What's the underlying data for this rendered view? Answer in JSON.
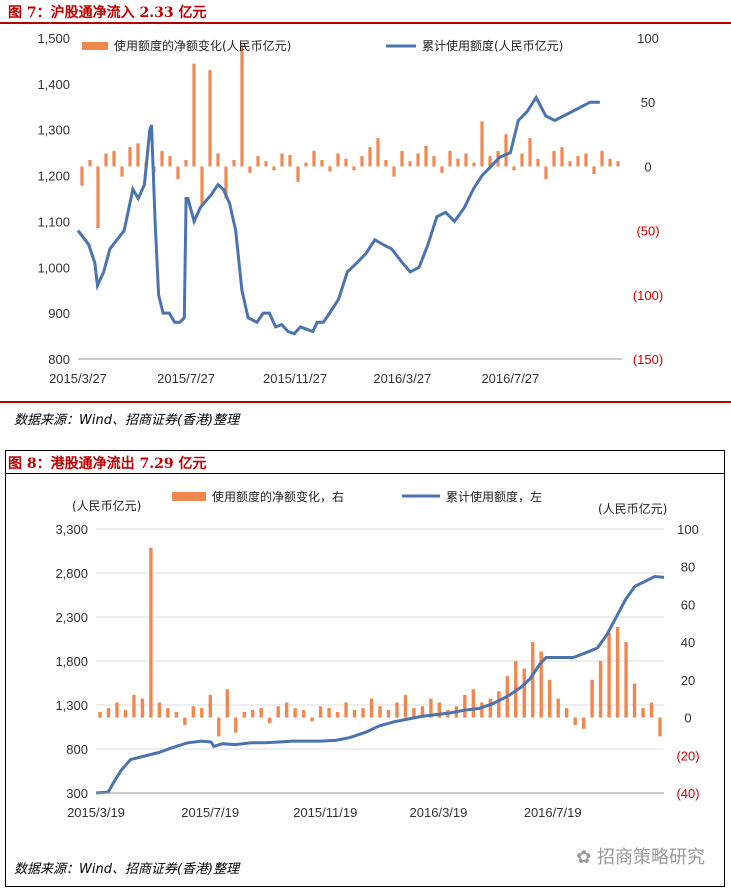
{
  "figure1": {
    "title": "图 7：沪股通净流入 2.33 亿元",
    "source": "数据来源：Wind、招商证券(香港)整理"
  },
  "figure2": {
    "title": "图 8：港股通净流出 7.29 亿元",
    "source": "数据来源：Wind、招商证券(香港)整理"
  },
  "watermark": "招商策略研究",
  "colors": {
    "bar": "#f0874e",
    "line": "#4a73b0",
    "title": "#c00000",
    "rule": "#b00000",
    "negative_tick": "#d00000"
  },
  "chart_data": [
    {
      "type": "bar+line",
      "title": "",
      "x_tick_labels": [
        "2015/3/27",
        "2015/7/27",
        "2015/11/27",
        "2016/3/27",
        "2016/7/27"
      ],
      "x_range": [
        "2015/3/27",
        "2016/11/30"
      ],
      "left_axis": {
        "ticks": [
          "800",
          "900",
          "1,000",
          "1,100",
          "1,200",
          "1,300",
          "1,400",
          "1,500"
        ],
        "range": [
          800,
          1500
        ]
      },
      "right_axis": {
        "ticks": [
          "(150)",
          "(100)",
          "(50)",
          "0",
          "50",
          "100"
        ],
        "range": [
          -150,
          100
        ]
      },
      "legend_position": "top",
      "series": [
        {
          "name": "使用额度的净额变化(人民币亿元)",
          "type": "bar",
          "axis": "right",
          "sample_values": [
            -15,
            5,
            -48,
            10,
            12,
            -8,
            15,
            18,
            3,
            -5,
            12,
            8,
            -10,
            5,
            80,
            -30,
            75,
            10,
            -25,
            5,
            95,
            -5,
            8,
            4,
            -3,
            10,
            9,
            -12,
            3,
            12,
            5,
            -4,
            10,
            6,
            -3,
            8,
            15,
            22,
            5,
            -8,
            12,
            4,
            10,
            16,
            8,
            -5,
            12,
            6,
            10,
            3,
            35,
            8,
            12,
            25,
            -3,
            10,
            22,
            6,
            -10,
            12,
            15,
            4,
            8,
            10,
            -6,
            12,
            6,
            4
          ]
        },
        {
          "name": "累计使用额度(人民币亿元)",
          "type": "line",
          "axis": "left",
          "points": [
            [
              "2015/3/27",
              1080
            ],
            [
              "2015/4/8",
              1050
            ],
            [
              "2015/4/15",
              1010
            ],
            [
              "2015/4/18",
              960
            ],
            [
              "2015/4/25",
              990
            ],
            [
              "2015/5/2",
              1040
            ],
            [
              "2015/5/10",
              1060
            ],
            [
              "2015/5/18",
              1080
            ],
            [
              "2015/5/28",
              1170
            ],
            [
              "2015/6/3",
              1150
            ],
            [
              "2015/6/10",
              1180
            ],
            [
              "2015/6/16",
              1300
            ],
            [
              "2015/6/18",
              1310
            ],
            [
              "2015/6/22",
              1100
            ],
            [
              "2015/6/26",
              940
            ],
            [
              "2015/7/1",
              900
            ],
            [
              "2015/7/8",
              900
            ],
            [
              "2015/7/14",
              880
            ],
            [
              "2015/7/20",
              880
            ],
            [
              "2015/7/25",
              890
            ],
            [
              "2015/7/27",
              1150
            ],
            [
              "2015/7/29",
              1150
            ],
            [
              "2015/8/5",
              1100
            ],
            [
              "2015/8/12",
              1130
            ],
            [
              "2015/8/25",
              1160
            ],
            [
              "2015/9/1",
              1180
            ],
            [
              "2015/9/7",
              1170
            ],
            [
              "2015/9/14",
              1140
            ],
            [
              "2015/9/21",
              1080
            ],
            [
              "2015/9/28",
              950
            ],
            [
              "2015/10/5",
              890
            ],
            [
              "2015/10/15",
              880
            ],
            [
              "2015/10/22",
              900
            ],
            [
              "2015/10/29",
              900
            ],
            [
              "2015/11/5",
              870
            ],
            [
              "2015/11/12",
              875
            ],
            [
              "2015/11/19",
              860
            ],
            [
              "2015/11/26",
              855
            ],
            [
              "2015/12/3",
              870
            ],
            [
              "2015/12/10",
              865
            ],
            [
              "2015/12/17",
              860
            ],
            [
              "2015/12/22",
              880
            ],
            [
              "2015/12/29",
              880
            ],
            [
              "2016/1/5",
              900
            ],
            [
              "2016/1/15",
              930
            ],
            [
              "2016/1/25",
              990
            ],
            [
              "2016/2/5",
              1010
            ],
            [
              "2016/2/15",
              1030
            ],
            [
              "2016/2/25",
              1060
            ],
            [
              "2016/3/5",
              1050
            ],
            [
              "2016/3/15",
              1040
            ],
            [
              "2016/3/27",
              1010
            ],
            [
              "2016/4/5",
              990
            ],
            [
              "2016/4/15",
              1000
            ],
            [
              "2016/4/25",
              1050
            ],
            [
              "2016/5/5",
              1110
            ],
            [
              "2016/5/15",
              1120
            ],
            [
              "2016/5/25",
              1100
            ],
            [
              "2016/6/5",
              1130
            ],
            [
              "2016/6/15",
              1170
            ],
            [
              "2016/6/25",
              1200
            ],
            [
              "2016/7/5",
              1220
            ],
            [
              "2016/7/15",
              1240
            ],
            [
              "2016/7/27",
              1250
            ],
            [
              "2016/8/5",
              1320
            ],
            [
              "2016/8/15",
              1340
            ],
            [
              "2016/8/25",
              1370
            ],
            [
              "2016/9/5",
              1330
            ],
            [
              "2016/9/15",
              1320
            ],
            [
              "2016/9/25",
              1330
            ],
            [
              "2016/10/5",
              1340
            ],
            [
              "2016/10/15",
              1350
            ],
            [
              "2016/10/25",
              1360
            ],
            [
              "2016/11/5",
              1360
            ]
          ]
        }
      ]
    },
    {
      "type": "bar+line",
      "title": "",
      "x_tick_labels": [
        "2015/3/19",
        "2015/7/19",
        "2015/11/19",
        "2016/3/19",
        "2016/7/19"
      ],
      "x_range": [
        "2015/3/19",
        "2016/11/15"
      ],
      "left_axis": {
        "unit": "(人民币亿元)",
        "ticks": [
          "300",
          "800",
          "1,300",
          "1,800",
          "2,300",
          "2,800",
          "3,300"
        ],
        "range": [
          300,
          3300
        ]
      },
      "right_axis": {
        "unit": "(人民币亿元)",
        "ticks": [
          "(40)",
          "(20)",
          "0",
          "20",
          "40",
          "60",
          "80",
          "100"
        ],
        "range": [
          -40,
          100
        ]
      },
      "legend_position": "top",
      "series": [
        {
          "name": "使用额度的净额变化，右",
          "type": "bar",
          "axis": "right",
          "sample_values": [
            3,
            5,
            8,
            4,
            12,
            10,
            90,
            8,
            5,
            3,
            -4,
            6,
            5,
            12,
            -10,
            15,
            -8,
            3,
            4,
            5,
            -3,
            6,
            8,
            5,
            4,
            -2,
            6,
            5,
            3,
            8,
            4,
            5,
            10,
            6,
            4,
            8,
            12,
            5,
            6,
            10,
            8,
            4,
            6,
            12,
            15,
            8,
            10,
            14,
            22,
            30,
            26,
            40,
            35,
            20,
            10,
            5,
            -4,
            -6,
            20,
            30,
            45,
            48,
            40,
            18,
            5,
            8,
            -10
          ]
        },
        {
          "name": "累计使用额度，左",
          "type": "line",
          "axis": "left",
          "points": [
            [
              "2015/3/19",
              300
            ],
            [
              "2015/4/1",
              310
            ],
            [
              "2015/4/8",
              440
            ],
            [
              "2015/4/15",
              560
            ],
            [
              "2015/4/25",
              680
            ],
            [
              "2015/5/10",
              720
            ],
            [
              "2015/5/25",
              760
            ],
            [
              "2015/6/10",
              820
            ],
            [
              "2015/6/25",
              870
            ],
            [
              "2015/7/10",
              890
            ],
            [
              "2015/7/20",
              880
            ],
            [
              "2015/7/23",
              830
            ],
            [
              "2015/8/1",
              860
            ],
            [
              "2015/8/15",
              850
            ],
            [
              "2015/9/1",
              870
            ],
            [
              "2015/9/15",
              870
            ],
            [
              "2015/10/1",
              880
            ],
            [
              "2015/10/15",
              890
            ],
            [
              "2015/11/1",
              890
            ],
            [
              "2015/11/15",
              890
            ],
            [
              "2015/12/1",
              900
            ],
            [
              "2015/12/15",
              930
            ],
            [
              "2016/1/1",
              990
            ],
            [
              "2016/1/15",
              1060
            ],
            [
              "2016/2/1",
              1110
            ],
            [
              "2016/2/15",
              1140
            ],
            [
              "2016/3/1",
              1170
            ],
            [
              "2016/3/15",
              1190
            ],
            [
              "2016/4/1",
              1210
            ],
            [
              "2016/4/15",
              1240
            ],
            [
              "2016/5/1",
              1260
            ],
            [
              "2016/5/15",
              1310
            ],
            [
              "2016/6/1",
              1400
            ],
            [
              "2016/6/15",
              1500
            ],
            [
              "2016/6/25",
              1600
            ],
            [
              "2016/7/5",
              1760
            ],
            [
              "2016/7/12",
              1840
            ],
            [
              "2016/7/25",
              1840
            ],
            [
              "2016/8/10",
              1840
            ],
            [
              "2016/8/25",
              1900
            ],
            [
              "2016/9/5",
              1950
            ],
            [
              "2016/9/15",
              2100
            ],
            [
              "2016/9/25",
              2300
            ],
            [
              "2016/10/5",
              2500
            ],
            [
              "2016/10/15",
              2650
            ],
            [
              "2016/10/25",
              2700
            ],
            [
              "2016/11/5",
              2760
            ],
            [
              "2016/11/15",
              2750
            ]
          ]
        }
      ]
    }
  ]
}
